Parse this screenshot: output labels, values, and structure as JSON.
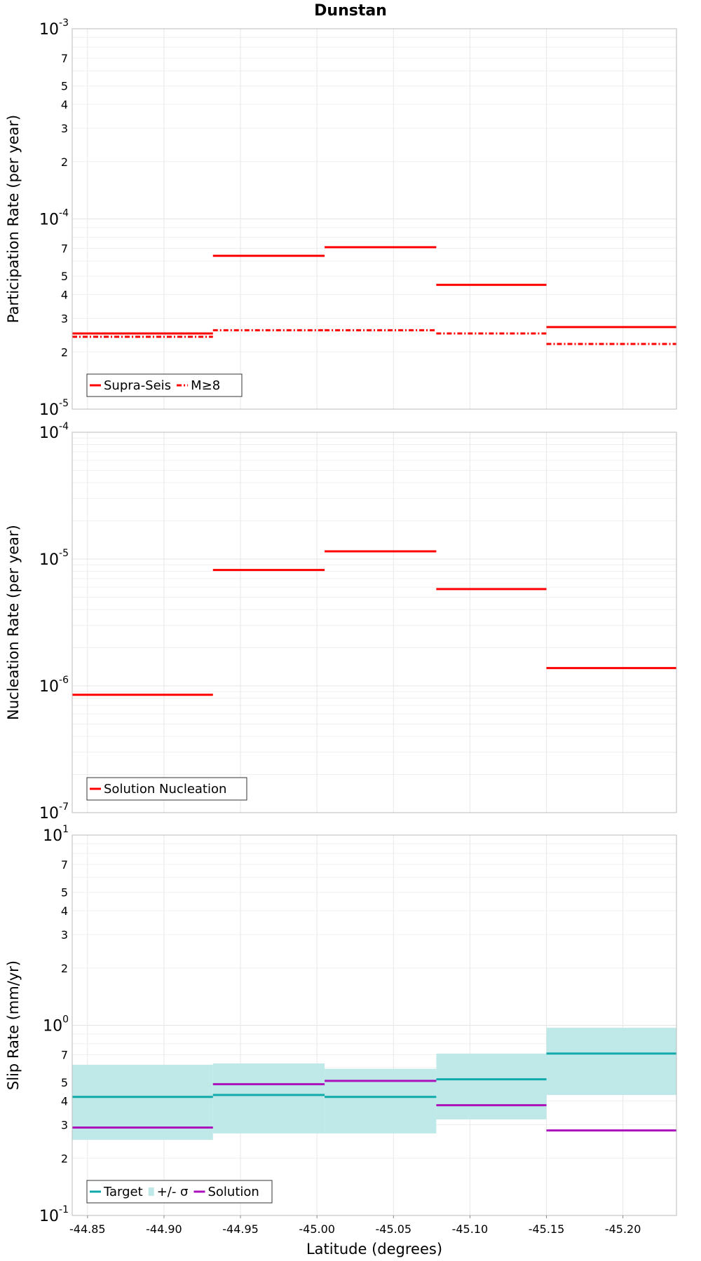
{
  "chart_data": [
    {
      "type": "line",
      "title": "Dunstan",
      "ylabel": "Participation Rate (per year)",
      "xlabel": "",
      "yscale": "log",
      "ylim": [
        1e-05,
        0.001
      ],
      "xlim": [
        -44.84,
        -45.235
      ],
      "grid": true,
      "legend_position": "bottom-left",
      "x_edges": [
        -44.84,
        -44.932,
        -45.005,
        -45.078,
        -45.15,
        -45.235
      ],
      "series": [
        {
          "name": "Supra-Seis",
          "color": "#ff0000",
          "style": "solid",
          "values": [
            2.5e-05,
            6.4e-05,
            7.1e-05,
            4.5e-05,
            2.7e-05
          ]
        },
        {
          "name": "M≥8",
          "color": "#ff0000",
          "style": "dashdot",
          "values": [
            2.4e-05,
            2.6e-05,
            2.6e-05,
            2.5e-05,
            2.2e-05
          ]
        }
      ]
    },
    {
      "type": "line",
      "title": "",
      "ylabel": "Nucleation Rate (per year)",
      "xlabel": "",
      "yscale": "log",
      "ylim": [
        1e-07,
        0.0001
      ],
      "xlim": [
        -44.84,
        -45.235
      ],
      "grid": true,
      "legend_position": "bottom-left",
      "x_edges": [
        -44.84,
        -44.932,
        -45.005,
        -45.078,
        -45.15,
        -45.235
      ],
      "series": [
        {
          "name": "Solution Nucleation",
          "color": "#ff0000",
          "style": "solid",
          "values": [
            8.5e-07,
            8.2e-06,
            1.15e-05,
            5.8e-06,
            1.38e-06
          ]
        }
      ]
    },
    {
      "type": "line",
      "title": "",
      "ylabel": "Slip Rate (mm/yr)",
      "xlabel": "Latitude (degrees)",
      "yscale": "log",
      "ylim": [
        0.1,
        10
      ],
      "xlim": [
        -44.84,
        -45.235
      ],
      "grid": true,
      "legend_position": "bottom-left",
      "x_edges": [
        -44.84,
        -44.932,
        -45.005,
        -45.078,
        -45.15,
        -45.235
      ],
      "xticks": [
        "-44.85",
        "-44.90",
        "-44.95",
        "-45.00",
        "-45.05",
        "-45.10",
        "-45.15",
        "-45.20"
      ],
      "series": [
        {
          "name": "Target",
          "color": "#11aaaa",
          "style": "solid",
          "values": [
            0.42,
            0.43,
            0.42,
            0.52,
            0.71
          ]
        },
        {
          "name": "+/- σ",
          "color": "#bfe9e8",
          "style": "band",
          "lower": [
            0.25,
            0.27,
            0.27,
            0.32,
            0.43
          ],
          "upper": [
            0.62,
            0.63,
            0.59,
            0.71,
            0.97
          ]
        },
        {
          "name": "Solution",
          "color": "#aa11bb",
          "style": "solid",
          "values": [
            0.29,
            0.49,
            0.51,
            0.38,
            0.28
          ]
        }
      ]
    }
  ]
}
